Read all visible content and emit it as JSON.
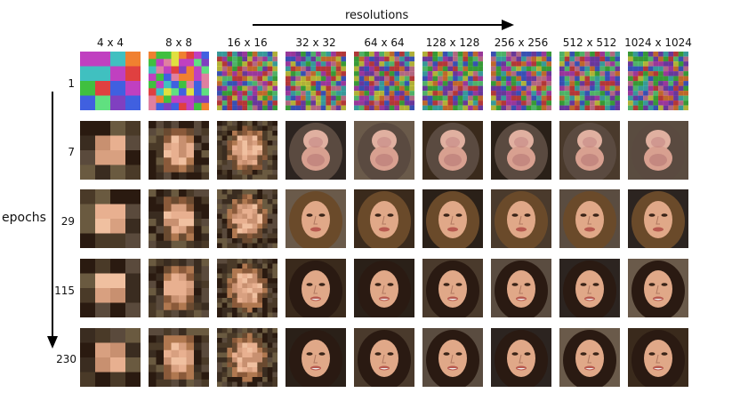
{
  "header": {
    "resolutions_label": "resolutions",
    "epochs_label": "epochs"
  },
  "columns": [
    "4 x 4",
    "8 x 8",
    "16 x 16",
    "32 x 32",
    "64 x 64",
    "128 x 128",
    "256 x 256",
    "512 x 512",
    "1024 x 1024"
  ],
  "rows": [
    "1",
    "7",
    "29",
    "115",
    "230"
  ]
}
